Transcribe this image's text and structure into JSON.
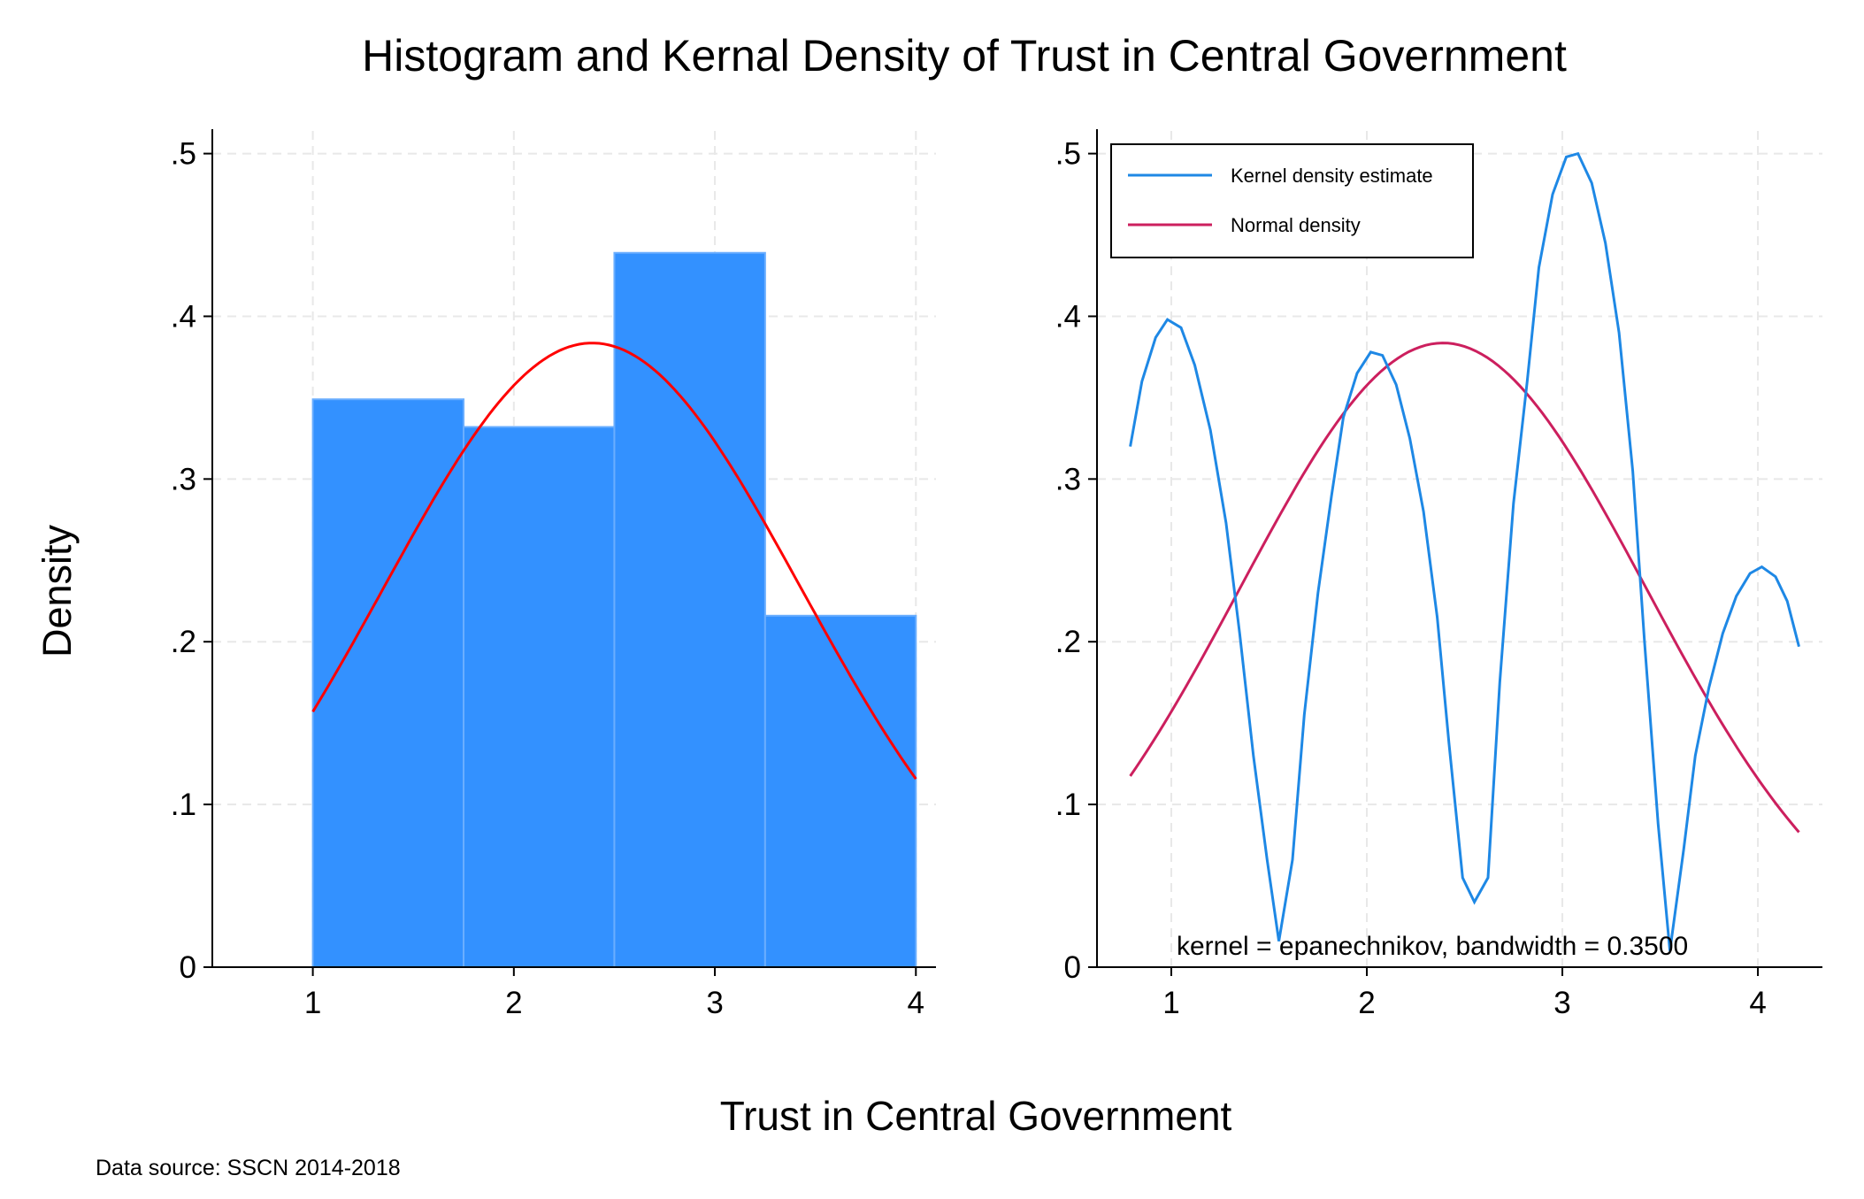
{
  "title": "Histogram and Kernal Density of Trust in Central Government",
  "xlabel": "Trust in Central Government",
  "ylabel": "Density",
  "footnote": "Data source: SSCN 2014-2018",
  "chart_data": [
    {
      "type": "bar",
      "subtype": "histogram",
      "bins": [
        {
          "x0": 1.0,
          "x1": 1.75,
          "density": 0.349
        },
        {
          "x0": 1.75,
          "x1": 2.5,
          "density": 0.332
        },
        {
          "x0": 2.5,
          "x1": 3.25,
          "density": 0.439
        },
        {
          "x0": 3.25,
          "x1": 4.0,
          "density": 0.216
        }
      ],
      "overlay_normal": {
        "mean": 2.39,
        "sd": 1.04,
        "x_range": [
          1.0,
          4.0
        ]
      },
      "xlim": [
        0.5,
        4.1
      ],
      "ylim": [
        0,
        0.515
      ],
      "xticks": [
        1,
        2,
        3,
        4
      ],
      "xtick_labels": [
        "1",
        "2",
        "3",
        "4"
      ],
      "yticks": [
        0,
        0.1,
        0.2,
        0.3,
        0.4,
        0.5
      ],
      "ytick_labels": [
        "0",
        ".1",
        ".2",
        ".3",
        ".4",
        ".5"
      ],
      "grid": true,
      "colors": {
        "bars": "#3391ff",
        "bar_edge": "#6aaeff",
        "normal": "#ff0000"
      }
    },
    {
      "type": "line",
      "series": [
        {
          "name": "Kernel density estimate",
          "color": "#1e88e5",
          "x": [
            0.79,
            0.85,
            0.92,
            0.98,
            1.05,
            1.12,
            1.2,
            1.28,
            1.35,
            1.42,
            1.49,
            1.55,
            1.62,
            1.68,
            1.75,
            1.82,
            1.88,
            1.95,
            2.02,
            2.08,
            2.15,
            2.22,
            2.29,
            2.36,
            2.42,
            2.49,
            2.55,
            2.62,
            2.68,
            2.75,
            2.82,
            2.88,
            2.95,
            3.02,
            3.08,
            3.15,
            3.22,
            3.29,
            3.36,
            3.42,
            3.49,
            3.55,
            3.62,
            3.68,
            3.75,
            3.82,
            3.89,
            3.96,
            4.02,
            4.09,
            4.15,
            4.21
          ],
          "y": [
            0.32,
            0.36,
            0.387,
            0.398,
            0.393,
            0.37,
            0.33,
            0.273,
            0.205,
            0.13,
            0.066,
            0.016,
            0.066,
            0.155,
            0.23,
            0.29,
            0.338,
            0.365,
            0.378,
            0.376,
            0.358,
            0.325,
            0.28,
            0.215,
            0.138,
            0.055,
            0.04,
            0.055,
            0.175,
            0.285,
            0.36,
            0.43,
            0.475,
            0.498,
            0.5,
            0.482,
            0.445,
            0.39,
            0.305,
            0.2,
            0.088,
            0.01,
            0.072,
            0.13,
            0.172,
            0.205,
            0.228,
            0.242,
            0.246,
            0.24,
            0.225,
            0.197
          ]
        },
        {
          "name": "Normal density",
          "color": "#cc1f5e",
          "mean": 2.39,
          "sd": 1.04,
          "x_range": [
            0.79,
            4.21
          ]
        }
      ],
      "note": "kernel = epanechnikov, bandwidth = 0.3500",
      "xlim": [
        0.62,
        4.33
      ],
      "ylim": [
        0,
        0.515
      ],
      "xticks": [
        1,
        2,
        3,
        4
      ],
      "xtick_labels": [
        "1",
        "2",
        "3",
        "4"
      ],
      "yticks": [
        0,
        0.1,
        0.2,
        0.3,
        0.4,
        0.5
      ],
      "ytick_labels": [
        "0",
        ".1",
        ".2",
        ".3",
        ".4",
        ".5"
      ],
      "grid": true,
      "legend": "top-left"
    }
  ]
}
